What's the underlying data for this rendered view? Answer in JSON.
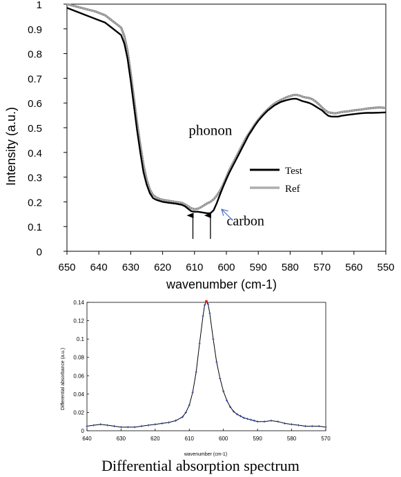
{
  "caption": "Differential absorption spectrum",
  "colors": {
    "test": "#000000",
    "ref": "#8a8a8a",
    "ref_light": "#c8c8c8",
    "diff_line": "#000000",
    "diff_marker": "#1f3aa8",
    "diff_peak_marker": "#e02020",
    "carbon_arrow": "#4a72c4"
  },
  "chart_data": [
    {
      "type": "line",
      "title": "",
      "xlabel": "wavenumber (cm-1)",
      "ylabel": "Intensity (a.u.)",
      "xlim": [
        650,
        550
      ],
      "ylim": [
        0,
        1
      ],
      "x_reversed": true,
      "x_ticks": [
        "650",
        "640",
        "630",
        "620",
        "610",
        "600",
        "590",
        "580",
        "570",
        "560",
        "550"
      ],
      "y_ticks": [
        "0",
        "0.1",
        "0.2",
        "0.3",
        "0.4",
        "0.5",
        "0.6",
        "0.7",
        "0.8",
        "0.9",
        "1"
      ],
      "grid": false,
      "legend": {
        "placement": "center-right",
        "entries": [
          "Test",
          "Ref"
        ]
      },
      "annotations": [
        {
          "text": "phonon",
          "x": 605,
          "y": 0.47
        },
        {
          "text": "carbon",
          "x": 594,
          "y": 0.105
        }
      ],
      "arrows": [
        {
          "name": "phonon-arrow-610",
          "x": 610.5,
          "y_from": 0.05,
          "y_to": 0.145
        },
        {
          "name": "phonon-arrow-605",
          "x": 605,
          "y_from": 0.05,
          "y_to": 0.145
        },
        {
          "name": "carbon-arrow",
          "x_from": 598,
          "y_from": 0.125,
          "x_to": 601.5,
          "y_to": 0.17
        }
      ],
      "series": [
        {
          "name": "Test",
          "x": [
            650,
            647,
            644,
            641,
            638,
            636,
            634,
            633,
            632,
            631,
            630,
            629,
            628,
            627,
            626,
            625,
            624,
            623,
            622,
            621,
            620,
            618,
            616,
            614,
            613,
            612,
            611,
            610,
            609,
            608,
            607,
            606,
            605,
            604,
            603,
            602,
            601,
            600,
            599,
            598,
            597,
            596,
            595,
            594,
            593,
            592,
            591,
            590,
            589,
            588,
            587,
            586,
            585,
            584,
            583,
            582,
            581,
            580,
            579,
            578,
            577,
            576,
            575,
            574,
            573,
            572,
            571,
            570,
            569,
            568,
            567,
            566,
            565,
            564,
            562,
            560,
            558,
            556,
            554,
            552,
            550
          ],
          "y": [
            0.985,
            0.97,
            0.955,
            0.94,
            0.925,
            0.905,
            0.885,
            0.875,
            0.84,
            0.78,
            0.69,
            0.59,
            0.49,
            0.4,
            0.32,
            0.27,
            0.235,
            0.215,
            0.208,
            0.204,
            0.2,
            0.196,
            0.193,
            0.188,
            0.182,
            0.172,
            0.162,
            0.16,
            0.16,
            0.158,
            0.156,
            0.154,
            0.154,
            0.166,
            0.195,
            0.23,
            0.262,
            0.292,
            0.32,
            0.345,
            0.37,
            0.395,
            0.42,
            0.445,
            0.47,
            0.49,
            0.51,
            0.528,
            0.543,
            0.557,
            0.57,
            0.58,
            0.59,
            0.597,
            0.604,
            0.608,
            0.612,
            0.615,
            0.617,
            0.617,
            0.612,
            0.607,
            0.604,
            0.6,
            0.594,
            0.586,
            0.578,
            0.57,
            0.558,
            0.548,
            0.545,
            0.545,
            0.545,
            0.548,
            0.552,
            0.555,
            0.558,
            0.56,
            0.56,
            0.561,
            0.562
          ]
        },
        {
          "name": "Ref",
          "x": [
            650,
            647,
            644,
            641,
            638,
            636,
            634,
            633,
            632,
            631,
            630,
            629,
            628,
            627,
            626,
            625,
            624,
            623,
            622,
            621,
            620,
            618,
            616,
            614,
            613,
            612,
            611,
            610,
            609,
            608,
            607,
            606,
            605,
            604,
            603,
            602,
            601,
            600,
            599,
            598,
            597,
            596,
            595,
            594,
            593,
            592,
            591,
            590,
            589,
            588,
            587,
            586,
            585,
            584,
            583,
            582,
            581,
            580,
            579,
            578,
            577,
            576,
            575,
            574,
            573,
            572,
            571,
            570,
            569,
            568,
            567,
            566,
            565,
            564,
            562,
            560,
            558,
            556,
            554,
            552,
            550
          ],
          "y": [
            1.0,
            0.99,
            0.98,
            0.97,
            0.955,
            0.935,
            0.915,
            0.905,
            0.87,
            0.81,
            0.72,
            0.62,
            0.52,
            0.43,
            0.35,
            0.29,
            0.25,
            0.228,
            0.218,
            0.212,
            0.208,
            0.204,
            0.2,
            0.196,
            0.19,
            0.182,
            0.174,
            0.17,
            0.172,
            0.178,
            0.186,
            0.194,
            0.2,
            0.21,
            0.225,
            0.245,
            0.27,
            0.3,
            0.33,
            0.355,
            0.38,
            0.405,
            0.43,
            0.455,
            0.475,
            0.495,
            0.515,
            0.532,
            0.548,
            0.562,
            0.575,
            0.587,
            0.597,
            0.605,
            0.612,
            0.618,
            0.624,
            0.628,
            0.632,
            0.633,
            0.63,
            0.625,
            0.622,
            0.62,
            0.615,
            0.606,
            0.595,
            0.582,
            0.57,
            0.562,
            0.56,
            0.558,
            0.56,
            0.563,
            0.566,
            0.57,
            0.573,
            0.577,
            0.58,
            0.582,
            0.58
          ]
        }
      ]
    },
    {
      "type": "line",
      "title": "",
      "xlabel": "wavenumber (cm-1)",
      "ylabel": "Differential absorbance (a.u.)",
      "xlim": [
        640,
        570
      ],
      "ylim": [
        0,
        0.14
      ],
      "x_reversed": true,
      "x_ticks": [
        "640",
        "630",
        "620",
        "610",
        "600",
        "590",
        "580",
        "570"
      ],
      "y_ticks": [
        "0",
        "0.02",
        "0.04",
        "0.06",
        "0.08",
        "0.1",
        "0.12",
        "0.14"
      ],
      "grid": false,
      "series": [
        {
          "x": [
            640,
            638,
            636,
            634,
            632,
            630,
            628,
            626,
            624,
            622,
            620,
            618,
            616,
            614,
            612,
            611,
            610,
            609,
            608,
            607,
            606,
            605.5,
            605,
            604.5,
            604,
            603,
            602,
            601,
            600,
            599,
            598,
            597,
            596,
            595,
            594,
            593,
            592,
            591,
            590,
            588,
            586,
            584,
            582,
            580,
            578,
            576,
            574,
            572,
            570
          ],
          "y": [
            0.005,
            0.006,
            0.007,
            0.006,
            0.005,
            0.004,
            0.004,
            0.004,
            0.005,
            0.006,
            0.007,
            0.008,
            0.009,
            0.011,
            0.015,
            0.02,
            0.028,
            0.042,
            0.064,
            0.095,
            0.125,
            0.137,
            0.141,
            0.138,
            0.128,
            0.1,
            0.075,
            0.057,
            0.043,
            0.033,
            0.026,
            0.021,
            0.018,
            0.016,
            0.014,
            0.013,
            0.012,
            0.011,
            0.01,
            0.01,
            0.011,
            0.01,
            0.008,
            0.007,
            0.006,
            0.005,
            0.005,
            0.005,
            0.004
          ]
        }
      ],
      "peak": {
        "x": 605,
        "y": 0.141
      }
    }
  ]
}
